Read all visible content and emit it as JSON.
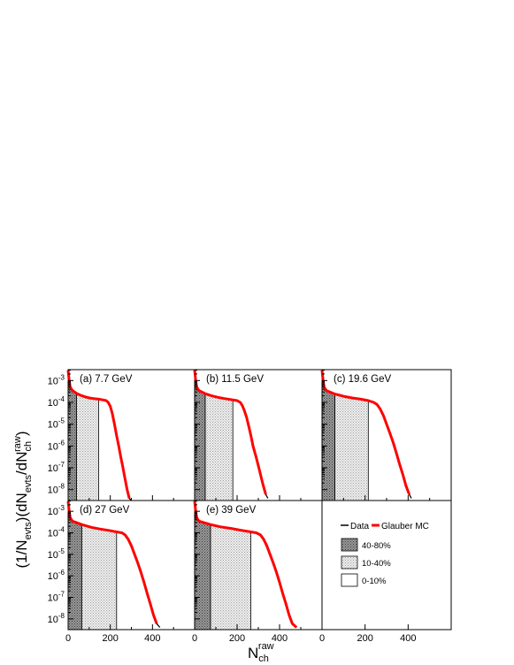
{
  "figure": {
    "ylabel_parts": [
      "(1/N",
      "evts",
      ")(dN",
      "evts",
      "/dN",
      "ch",
      "raw",
      ")"
    ],
    "xlabel_main": "N",
    "xlabel_sub": "ch",
    "xlabel_sup": "raw"
  },
  "legend": {
    "data_label": "Data",
    "mc_label": "Glauber MC",
    "bands": [
      {
        "label": "40-80%",
        "pattern": "dark-dots"
      },
      {
        "label": "10-40%",
        "pattern": "light-dots"
      },
      {
        "label": "0-10%",
        "pattern": "white"
      }
    ]
  },
  "colors": {
    "data": "#000000",
    "mc": "#ff0000",
    "axis": "#000000"
  },
  "chart_data": [
    {
      "type": "line",
      "panel_label": "(a) 7.7 GeV",
      "xlim": [
        0,
        600
      ],
      "ylim_log10": [
        -8.5,
        -2.5
      ],
      "yscale": "log",
      "x_ticks": [
        0,
        200,
        400
      ],
      "y_tick_labels": [
        "10-3",
        "10-4",
        "10-5",
        "10-6",
        "10-7",
        "10-8"
      ],
      "bands": {
        "x_40_80": [
          0,
          40
        ],
        "x_10_40": [
          40,
          145
        ],
        "x_0_10": [
          145,
          300
        ]
      },
      "series": [
        {
          "name": "Data",
          "x": [
            0,
            5,
            10,
            20,
            40,
            60,
            80,
            100,
            120,
            145,
            165,
            180,
            190,
            200,
            210,
            220,
            230,
            240,
            250,
            260,
            270,
            280,
            290,
            300
          ],
          "y": [
            0.003,
            0.001,
            0.0005,
            0.00035,
            0.00026,
            0.00021,
            0.00018,
            0.00016,
            0.00015,
            0.00014,
            0.00013,
            0.00012,
            0.0001,
            6.5e-05,
            3e-05,
            1e-05,
            3e-06,
            1e-06,
            3e-07,
            1e-07,
            3e-08,
            1e-08,
            4e-09,
            3e-09
          ]
        },
        {
          "name": "Glauber MC",
          "x": [
            0,
            5,
            10,
            20,
            40,
            60,
            80,
            100,
            120,
            145,
            165,
            180,
            190,
            200,
            210,
            220,
            230,
            240,
            250,
            260,
            270,
            280,
            290
          ],
          "y": [
            0.003,
            0.001,
            0.0005,
            0.00035,
            0.00026,
            0.00021,
            0.00018,
            0.00016,
            0.00015,
            0.00014,
            0.00013,
            0.00012,
            0.0001,
            6.5e-05,
            3e-05,
            1e-05,
            3e-06,
            1e-06,
            3e-07,
            1e-07,
            3e-08,
            1e-08,
            4e-09
          ]
        }
      ]
    },
    {
      "type": "line",
      "panel_label": "(b) 11.5 GeV",
      "xlim": [
        0,
        600
      ],
      "ylim_log10": [
        -8.5,
        -2.5
      ],
      "yscale": "log",
      "x_ticks": [
        0,
        200,
        400
      ],
      "y_tick_labels": [],
      "bands": {
        "x_40_80": [
          0,
          50
        ],
        "x_10_40": [
          50,
          180
        ],
        "x_0_10": [
          180,
          350
        ]
      },
      "series": [
        {
          "name": "Data",
          "x": [
            0,
            5,
            10,
            20,
            50,
            80,
            110,
            140,
            180,
            200,
            215,
            225,
            235,
            245,
            255,
            265,
            275,
            290,
            305,
            320,
            335,
            345
          ],
          "y": [
            0.003,
            0.001,
            0.0005,
            0.00035,
            0.00025,
            0.0002,
            0.00017,
            0.00015,
            0.00013,
            0.00012,
            0.0001,
            7e-05,
            4e-05,
            2e-05,
            8e-06,
            3e-06,
            1e-06,
            3e-07,
            8e-08,
            2e-08,
            6e-09,
            4e-09
          ]
        },
        {
          "name": "Glauber MC",
          "x": [
            0,
            5,
            10,
            20,
            50,
            80,
            110,
            140,
            180,
            200,
            215,
            225,
            235,
            245,
            255,
            265,
            275,
            290,
            305,
            320,
            335
          ],
          "y": [
            0.003,
            0.001,
            0.0005,
            0.00035,
            0.00025,
            0.0002,
            0.00017,
            0.00015,
            0.00013,
            0.00012,
            0.0001,
            7e-05,
            4e-05,
            2e-05,
            8e-06,
            3e-06,
            1e-06,
            3e-07,
            8e-08,
            2e-08,
            6e-09
          ]
        }
      ]
    },
    {
      "type": "line",
      "panel_label": "(c) 19.6 GeV",
      "xlim": [
        0,
        600
      ],
      "ylim_log10": [
        -8.5,
        -2.5
      ],
      "yscale": "log",
      "x_ticks": [
        0,
        200,
        400
      ],
      "x_tick_labels": [
        "0",
        "200",
        "400"
      ],
      "y_tick_labels": [],
      "bands": {
        "x_40_80": [
          0,
          60
        ],
        "x_10_40": [
          60,
          215
        ],
        "x_0_10": [
          215,
          420
        ]
      },
      "series": [
        {
          "name": "Data",
          "x": [
            0,
            5,
            10,
            20,
            60,
            100,
            140,
            180,
            215,
            240,
            255,
            270,
            285,
            300,
            315,
            330,
            345,
            360,
            375,
            390,
            405,
            415
          ],
          "y": [
            0.003,
            0.001,
            0.0005,
            0.00035,
            0.00024,
            0.00019,
            0.00016,
            0.00014,
            0.00012,
            0.0001,
            8e-05,
            5e-05,
            2.5e-05,
            1e-05,
            4e-06,
            1.5e-06,
            5e-07,
            1.5e-07,
            5e-08,
            1.5e-08,
            6e-09,
            4e-09
          ]
        },
        {
          "name": "Glauber MC",
          "x": [
            0,
            5,
            10,
            20,
            60,
            100,
            140,
            180,
            215,
            240,
            255,
            270,
            285,
            300,
            315,
            330,
            345,
            360,
            375,
            390,
            405
          ],
          "y": [
            0.003,
            0.001,
            0.0005,
            0.00035,
            0.00024,
            0.00019,
            0.00016,
            0.00014,
            0.00012,
            0.0001,
            8e-05,
            5e-05,
            2.5e-05,
            1e-05,
            4e-06,
            1.5e-06,
            5e-07,
            1.5e-07,
            5e-08,
            1.5e-08,
            6e-09
          ]
        }
      ]
    },
    {
      "type": "line",
      "panel_label": "(d) 27 GeV",
      "xlim": [
        0,
        600
      ],
      "ylim_log10": [
        -8.5,
        -2.5
      ],
      "yscale": "log",
      "x_ticks": [
        0,
        200,
        400
      ],
      "x_tick_labels": [
        "0",
        "200",
        "400"
      ],
      "y_tick_labels": [
        "10-3",
        "10-4",
        "10-5",
        "10-6",
        "10-7",
        "10-8"
      ],
      "bands": {
        "x_40_80": [
          0,
          65
        ],
        "x_10_40": [
          65,
          230
        ],
        "x_0_10": [
          230,
          440
        ]
      },
      "series": [
        {
          "name": "Data",
          "x": [
            0,
            5,
            10,
            20,
            65,
            110,
            150,
            190,
            230,
            255,
            270,
            285,
            300,
            315,
            330,
            345,
            360,
            375,
            390,
            405,
            420,
            435
          ],
          "y": [
            0.003,
            0.001,
            0.0005,
            0.00035,
            0.00024,
            0.00018,
            0.00015,
            0.00013,
            0.00011,
            0.0001,
            8e-05,
            5e-05,
            2.5e-05,
            1e-05,
            4e-06,
            1.5e-06,
            5e-07,
            1.5e-07,
            5e-08,
            1.5e-08,
            6e-09,
            4e-09
          ]
        },
        {
          "name": "Glauber MC",
          "x": [
            0,
            5,
            10,
            20,
            65,
            110,
            150,
            190,
            230,
            255,
            270,
            285,
            300,
            315,
            330,
            345,
            360,
            375,
            390,
            405,
            420
          ],
          "y": [
            0.003,
            0.001,
            0.0005,
            0.00035,
            0.00024,
            0.00018,
            0.00015,
            0.00013,
            0.00011,
            0.0001,
            8e-05,
            5e-05,
            2.5e-05,
            1e-05,
            4e-06,
            1.5e-06,
            5e-07,
            1.5e-07,
            5e-08,
            1.5e-08,
            6e-09
          ]
        }
      ]
    },
    {
      "type": "line",
      "panel_label": "(e) 39 GeV",
      "xlim": [
        0,
        600
      ],
      "ylim_log10": [
        -8.5,
        -2.5
      ],
      "yscale": "log",
      "x_ticks": [
        0,
        200,
        400
      ],
      "x_tick_labels": [
        "0",
        "200",
        "400"
      ],
      "y_tick_labels": [],
      "bands": {
        "x_40_80": [
          0,
          75
        ],
        "x_10_40": [
          75,
          265
        ],
        "x_0_10": [
          265,
          500
        ]
      },
      "series": [
        {
          "name": "Data",
          "x": [
            0,
            5,
            10,
            20,
            75,
            120,
            170,
            220,
            265,
            290,
            310,
            325,
            340,
            355,
            370,
            385,
            400,
            415,
            430,
            445,
            460,
            480
          ],
          "y": [
            0.003,
            0.001,
            0.0005,
            0.00035,
            0.00024,
            0.00019,
            0.00016,
            0.00013,
            0.00011,
            0.0001,
            8e-05,
            5e-05,
            2.5e-05,
            1e-05,
            4e-06,
            1.5e-06,
            5e-07,
            1.5e-07,
            5e-08,
            1.5e-08,
            6e-09,
            4e-09
          ]
        },
        {
          "name": "Glauber MC",
          "x": [
            0,
            5,
            10,
            20,
            75,
            120,
            170,
            220,
            265,
            290,
            310,
            325,
            340,
            355,
            370,
            385,
            400,
            415,
            430,
            445,
            460,
            480
          ],
          "y": [
            0.003,
            0.001,
            0.0005,
            0.00035,
            0.00024,
            0.00019,
            0.00016,
            0.00013,
            0.00011,
            0.0001,
            8e-05,
            5e-05,
            2.5e-05,
            1e-05,
            4e-06,
            1.5e-06,
            5e-07,
            1.5e-07,
            5e-08,
            1.5e-08,
            6e-09,
            4e-09
          ]
        }
      ]
    }
  ]
}
